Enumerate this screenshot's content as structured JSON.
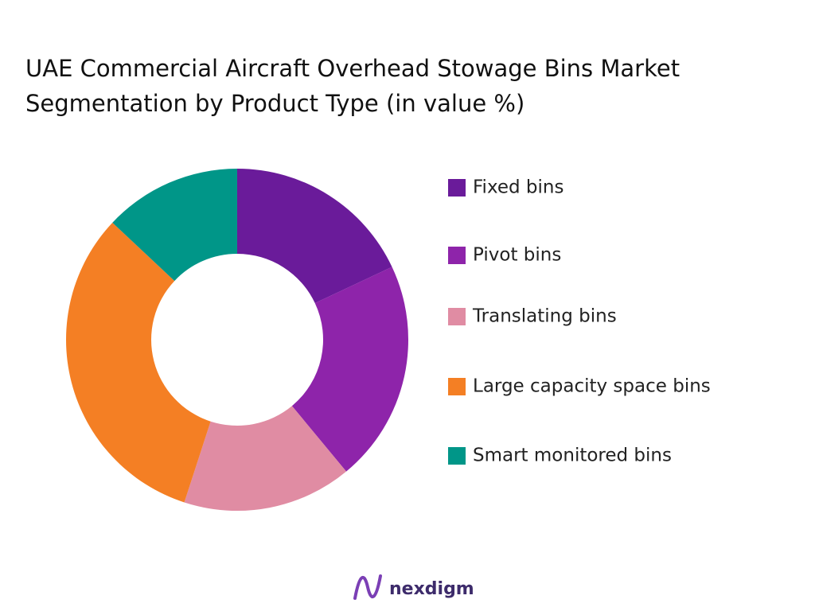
{
  "chart_data": {
    "type": "donut",
    "title": "UAE Commercial Aircraft Overhead Stowage Bins Market Segmentation by Product Type (in value %)",
    "categories": [
      "Fixed bins",
      "Pivot bins",
      "Translating bins",
      "Large capacity space bins",
      "Smart monitored bins"
    ],
    "values": [
      18,
      21,
      16,
      32,
      13
    ],
    "colors": [
      "#6a1b9a",
      "#8e24aa",
      "#e08ca3",
      "#f47f24",
      "#009688"
    ],
    "legend": "right"
  },
  "logo": "nexdigm"
}
